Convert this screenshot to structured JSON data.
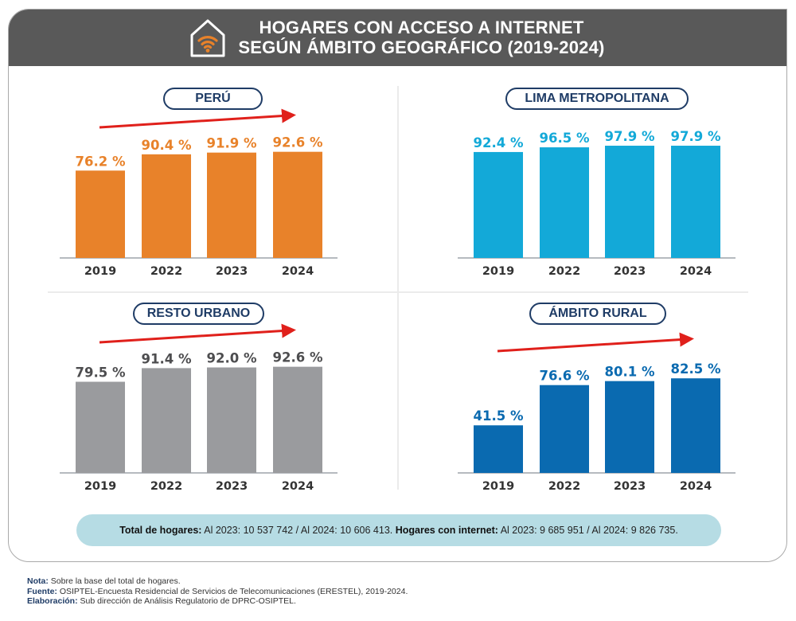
{
  "header": {
    "title_line1": "HOGARES CON ACCESO A INTERNET",
    "title_line2": "SEGÚN ÁMBITO GEOGRÁFICO (2019-2024)",
    "icon": "house-wifi-icon"
  },
  "colors": {
    "header_bg": "#595959",
    "peru": "#e8822a",
    "lima": "#13a9d8",
    "resto": "#9a9b9e",
    "resto_label": "#4d4d4f",
    "rural": "#0a6ab0",
    "arrow": "#e0201b",
    "pill_border": "#1f3c66"
  },
  "chart_data": [
    {
      "type": "bar",
      "title": "PERÚ",
      "categories": [
        "2019",
        "2022",
        "2023",
        "2024"
      ],
      "values": [
        76.2,
        90.4,
        91.9,
        92.6
      ],
      "labels": [
        "76.2 %",
        "90.4 %",
        "91.9 %",
        "92.6 %"
      ],
      "ylim": [
        0,
        100
      ],
      "unit": "%",
      "trend_arrow": true,
      "grid": false
    },
    {
      "type": "bar",
      "title": "LIMA METROPOLITANA",
      "categories": [
        "2019",
        "2022",
        "2023",
        "2024"
      ],
      "values": [
        92.4,
        96.5,
        97.9,
        97.9
      ],
      "labels": [
        "92.4 %",
        "96.5 %",
        "97.9 %",
        "97.9 %"
      ],
      "ylim": [
        0,
        100
      ],
      "unit": "%",
      "trend_arrow": false,
      "grid": false
    },
    {
      "type": "bar",
      "title": "RESTO URBANO",
      "categories": [
        "2019",
        "2022",
        "2023",
        "2024"
      ],
      "values": [
        79.5,
        91.4,
        92.0,
        92.6
      ],
      "labels": [
        "79.5 %",
        "91.4 %",
        "92.0 %",
        "92.6 %"
      ],
      "ylim": [
        0,
        100
      ],
      "unit": "%",
      "trend_arrow": true,
      "grid": false
    },
    {
      "type": "bar",
      "title": "ÁMBITO RURAL",
      "categories": [
        "2019",
        "2022",
        "2023",
        "2024"
      ],
      "values": [
        41.5,
        76.6,
        80.1,
        82.5
      ],
      "labels": [
        "41.5 %",
        "76.6 %",
        "80.1 %",
        "82.5 %"
      ],
      "ylim": [
        0,
        100
      ],
      "unit": "%",
      "trend_arrow": true,
      "grid": false
    }
  ],
  "summary": {
    "total_label": "Total de hogares:",
    "total_text": " Al 2023: 10 537 742 / Al 2024: 10 606 413. ",
    "internet_label": "Hogares con internet:",
    "internet_text": " Al 2023: 9 685 951 / Al 2024: 9 826 735."
  },
  "notes": {
    "nota_label": "Nota:",
    "nota_text": " Sobre la base del total de hogares.",
    "fuente_label": "Fuente:",
    "fuente_text": " OSIPTEL-Encuesta Residencial de Servicios de Telecomunicaciones (ERESTEL), 2019-2024.",
    "elab_label": "Elaboración:",
    "elab_text": " Sub dirección de Análisis Regulatorio de DPRC-OSIPTEL."
  }
}
